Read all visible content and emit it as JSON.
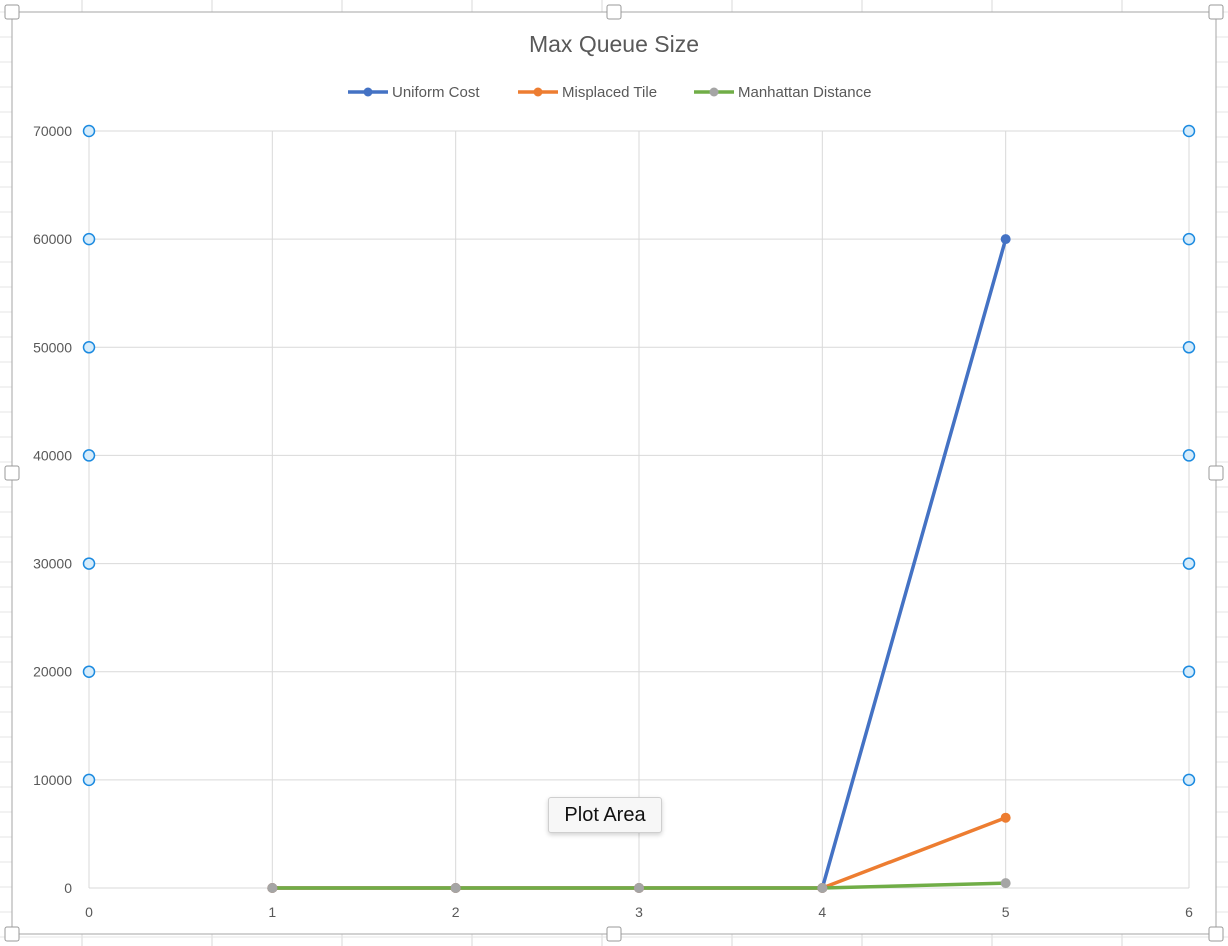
{
  "chart_data": {
    "type": "line",
    "title": "Max Queue Size",
    "x": [
      1,
      2,
      3,
      4,
      5
    ],
    "x_ticks": [
      "0",
      "1",
      "2",
      "3",
      "4",
      "5",
      "6"
    ],
    "y_ticks": [
      "0",
      "10000",
      "20000",
      "30000",
      "40000",
      "50000",
      "60000",
      "70000"
    ],
    "xlim": [
      0,
      6
    ],
    "ylim": [
      0,
      70000
    ],
    "grid": true,
    "legend_position": "top",
    "series": [
      {
        "name": "Uniform Cost",
        "color": "#4472C4",
        "values": [
          0,
          0,
          0,
          0,
          60000
        ]
      },
      {
        "name": "Misplaced Tile",
        "color": "#ED7D31",
        "values": [
          0,
          0,
          0,
          0,
          6500
        ]
      },
      {
        "name": "Manhattan Distance",
        "color": "#70AD47",
        "marker_color": "#A5A5A5",
        "values": [
          0,
          0,
          0,
          0,
          450
        ]
      }
    ]
  },
  "tooltip": {
    "text": "Plot Area"
  }
}
